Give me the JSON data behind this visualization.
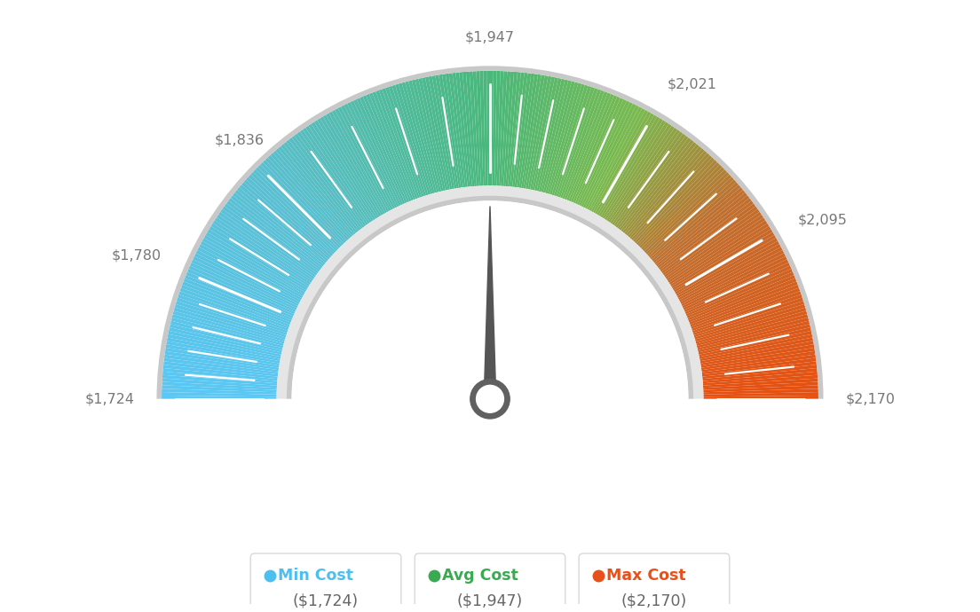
{
  "min_val": 1724,
  "max_val": 2170,
  "avg_val": 1947,
  "tick_labels": [
    "$1,724",
    "$1,780",
    "$1,836",
    "$1,947",
    "$2,021",
    "$2,095",
    "$2,170"
  ],
  "tick_values": [
    1724,
    1780,
    1836,
    1947,
    2021,
    2095,
    2170
  ],
  "legend": [
    {
      "label": "Min Cost",
      "value": "($1,724)",
      "color": "#4dbfef"
    },
    {
      "label": "Avg Cost",
      "value": "($1,947)",
      "color": "#3aaa52"
    },
    {
      "label": "Max Cost",
      "value": "($2,170)",
      "color": "#e8501a"
    }
  ],
  "bg_color": "#ffffff",
  "needle_color": "#555555",
  "label_color": "#777777",
  "gradient_stops": [
    [
      0.0,
      "#5ac8f5"
    ],
    [
      0.25,
      "#5abfd0"
    ],
    [
      0.5,
      "#4ab87a"
    ],
    [
      0.65,
      "#7aba50"
    ],
    [
      0.78,
      "#c07030"
    ],
    [
      1.0,
      "#e85010"
    ]
  ]
}
